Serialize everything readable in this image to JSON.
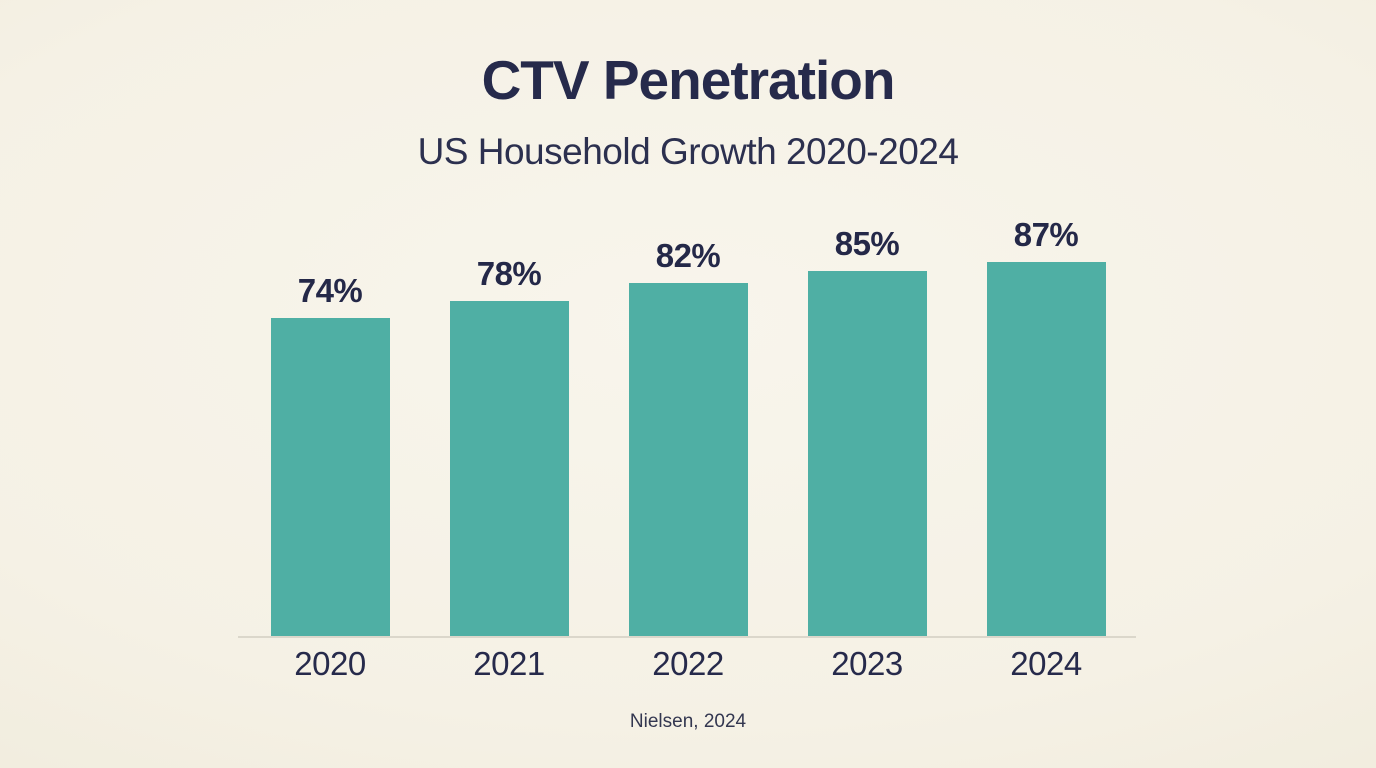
{
  "page": {
    "background_color": "#f5f1e5"
  },
  "header": {
    "title": "CTV Penetration",
    "subtitle": "US Household Growth 2020-2024"
  },
  "footer": {
    "source": "Nielsen, 2024"
  },
  "colors": {
    "bar_fill": "#4fafa4",
    "text_dark_navy": "#262a4b",
    "axis_line": "#dbd7cb"
  },
  "chart_data": {
    "type": "bar",
    "title": "CTV Penetration",
    "subtitle": "US Household Growth 2020-2024",
    "source": "Nielsen, 2024",
    "categories": [
      "2020",
      "2021",
      "2022",
      "2023",
      "2024"
    ],
    "values": [
      74,
      78,
      82,
      85,
      87
    ],
    "value_labels": [
      "74%",
      "78%",
      "82%",
      "85%",
      "87%"
    ],
    "unit": "%",
    "xlabel": "",
    "ylabel": "",
    "ylim": [
      0,
      100
    ],
    "grid": false,
    "legend": false,
    "bar_color": "#4fafa4",
    "data_labels_position": "above-bars"
  }
}
